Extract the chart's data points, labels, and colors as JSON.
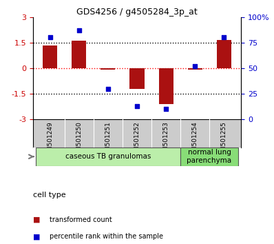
{
  "title": "GDS4256 / g4505284_3p_at",
  "samples": [
    "GSM501249",
    "GSM501250",
    "GSM501251",
    "GSM501252",
    "GSM501253",
    "GSM501254",
    "GSM501255"
  ],
  "bar_values": [
    1.35,
    1.6,
    -0.08,
    -1.2,
    -2.1,
    -0.1,
    1.65
  ],
  "percentile_values": [
    80,
    87,
    30,
    13,
    10,
    52,
    80
  ],
  "bar_color": "#aa1111",
  "dot_color": "#0000cc",
  "ylim_left": [
    -3,
    3
  ],
  "ylim_right": [
    0,
    100
  ],
  "yticks_left": [
    -3,
    -1.5,
    0,
    1.5,
    3
  ],
  "yticks_right": [
    0,
    25,
    50,
    75,
    100
  ],
  "ytick_labels_left": [
    "-3",
    "-1.5",
    "0",
    "1.5",
    "3"
  ],
  "ytick_labels_right": [
    "0",
    "25",
    "50",
    "75",
    "100%"
  ],
  "hlines": [
    1.5,
    0.0,
    -1.5
  ],
  "hline_colors": [
    "black",
    "red",
    "black"
  ],
  "cell_groups": [
    {
      "label": "caseous TB granulomas",
      "indices": [
        0,
        1,
        2,
        3,
        4
      ],
      "color": "#bbeeaa"
    },
    {
      "label": "normal lung\nparenchyma",
      "indices": [
        5,
        6
      ],
      "color": "#88dd77"
    }
  ],
  "legend_entries": [
    {
      "color": "#aa1111",
      "label": "transformed count"
    },
    {
      "color": "#0000cc",
      "label": "percentile rank within the sample"
    }
  ],
  "tick_label_color_left": "#cc0000",
  "tick_label_color_right": "#0000cc",
  "bar_width": 0.5,
  "sample_bg_color": "#cccccc",
  "plot_bg_color": "#ffffff",
  "cell_type_text": "cell type"
}
